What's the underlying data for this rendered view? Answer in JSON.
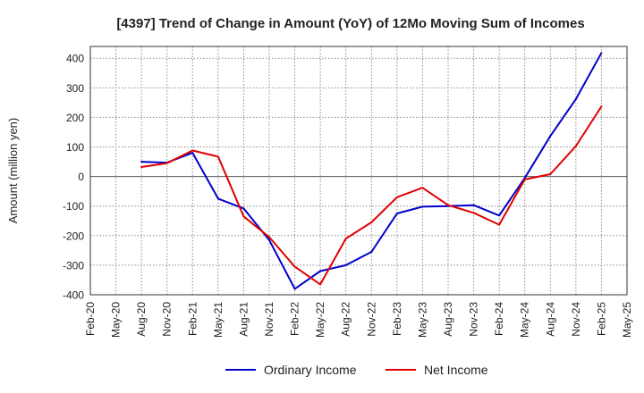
{
  "colors": {
    "ordinary": "#0000cc",
    "net": "#e00000",
    "grid": "#8c8c8c",
    "zero_line": "#555555",
    "frame": "#333333"
  },
  "chart_data": {
    "type": "line",
    "title": "[4397]  Trend of Change in Amount (YoY) of 12Mo Moving Sum of Incomes",
    "xlabel": "",
    "ylabel": "Amount (million yen)",
    "ylim": [
      -400,
      440
    ],
    "yticks": [
      400,
      300,
      200,
      100,
      0,
      -100,
      -200,
      -300,
      -400
    ],
    "grid": true,
    "legend_position": "bottom-center",
    "categories": [
      "Feb-20",
      "May-20",
      "Aug-20",
      "Nov-20",
      "Feb-21",
      "May-21",
      "Aug-21",
      "Nov-21",
      "Feb-22",
      "May-22",
      "Aug-22",
      "Nov-22",
      "Feb-23",
      "May-23",
      "Aug-23",
      "Nov-23",
      "Feb-24",
      "May-24",
      "Aug-24",
      "Nov-24",
      "Feb-25",
      "May-25"
    ],
    "series": [
      {
        "name": "Ordinary Income",
        "color_key": "ordinary",
        "values": [
          null,
          null,
          50,
          47,
          80,
          -75,
          -108,
          -215,
          -380,
          -320,
          -300,
          -255,
          -125,
          -102,
          -100,
          -97,
          -132,
          -5,
          137,
          262,
          418,
          null
        ]
      },
      {
        "name": "Net Income",
        "color_key": "net",
        "values": [
          null,
          null,
          32,
          45,
          88,
          67,
          -135,
          -205,
          -305,
          -365,
          -210,
          -155,
          -70,
          -38,
          -97,
          -123,
          -163,
          -10,
          8,
          103,
          237,
          null
        ]
      }
    ]
  }
}
